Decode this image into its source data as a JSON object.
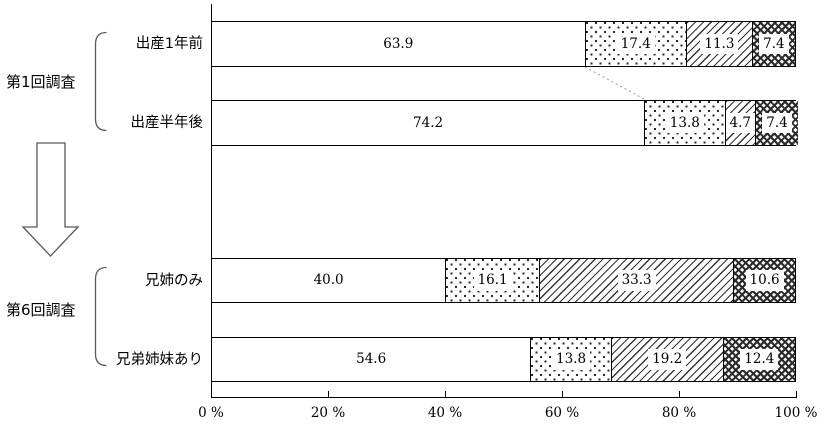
{
  "chart_data": {
    "type": "bar",
    "variant": "horizontal-stacked-percentage",
    "title": "",
    "legend": "none",
    "grid": false,
    "x_axis": {
      "range": [
        0,
        100
      ],
      "tick_labels": [
        "0 %",
        "20 %",
        "40 %",
        "60 %",
        "80 %",
        "100 %"
      ]
    },
    "patterns": [
      "plain",
      "dots",
      "diag",
      "cross"
    ],
    "groups": [
      {
        "label": "第1回調査",
        "rows": [
          {
            "label": "出産1年前",
            "values": [
              63.9,
              17.4,
              11.3,
              7.4
            ],
            "value_labels": [
              "63.9",
              "17.4",
              "11.3",
              "7.4"
            ]
          },
          {
            "label": "出産半年後",
            "values": [
              74.2,
              13.8,
              4.7,
              7.4
            ],
            "value_labels": [
              "74.2",
              "13.8",
              "4.7",
              "7.4"
            ]
          }
        ]
      },
      {
        "label": "第6回調査",
        "rows": [
          {
            "label": "兄姉のみ",
            "values": [
              40.0,
              16.1,
              33.3,
              10.6
            ],
            "value_labels": [
              "40.0",
              "16.1",
              "33.3",
              "10.6"
            ]
          },
          {
            "label": "兄弟姉妹あり",
            "values": [
              54.6,
              13.8,
              19.2,
              12.4
            ],
            "value_labels": [
              "54.6",
              "13.8",
              "19.2",
              "12.4"
            ]
          }
        ]
      }
    ]
  },
  "colors": {
    "background": "#ffffff",
    "bar_border": "#000000",
    "pattern_ink": "#262626",
    "axis": "#000000",
    "annotation_gray": "#595959",
    "connector_dotted": "#aaaaaa"
  }
}
